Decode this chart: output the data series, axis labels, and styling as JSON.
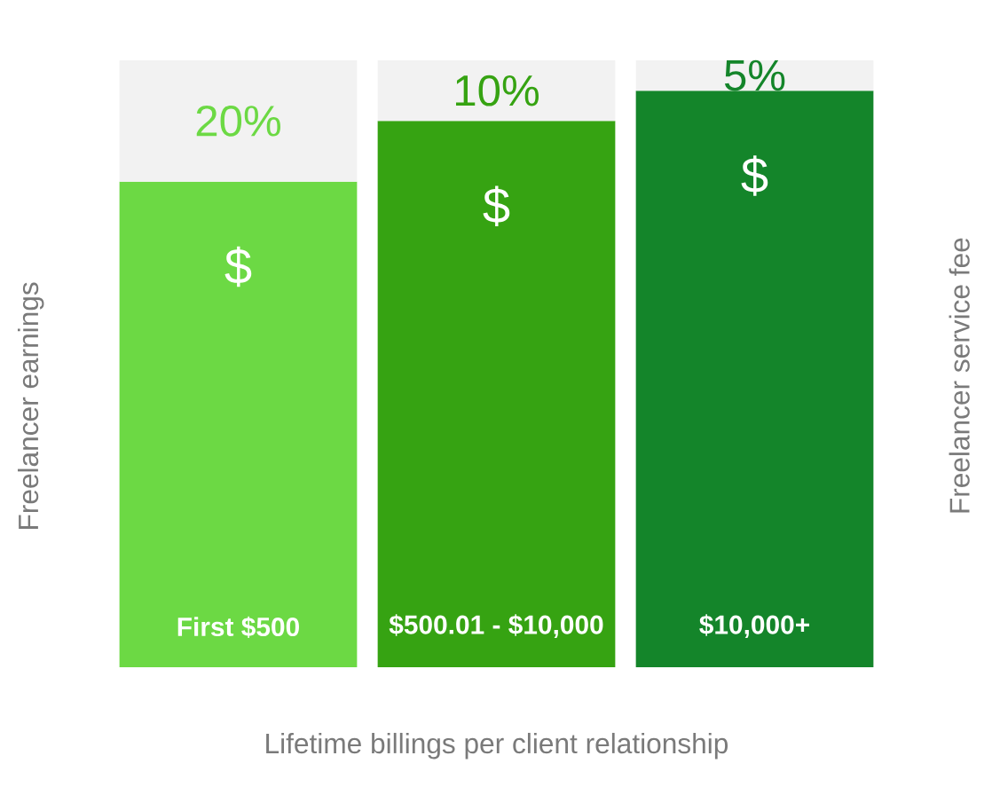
{
  "chart_data": {
    "type": "bar",
    "stacked": true,
    "ylim": [
      0,
      100
    ],
    "tick_labels": false,
    "xlabel": "Lifetime billings per client relationship",
    "ylabel": "Freelancer earnings",
    "y2label": "Freelancer service fee",
    "categories": [
      "First $500",
      "$500.01 - $10,000",
      "$10,000+"
    ],
    "series": [
      {
        "colors": [
          "#6cd944",
          "#36a312",
          "#14852a"
        ],
        "values": [
          80,
          90,
          95
        ],
        "value_labels": [
          "$",
          "$",
          "$"
        ]
      },
      {
        "colors": [
          "#f2f2f2",
          "#f2f2f2",
          "#f2f2f2"
        ],
        "values": [
          20,
          10,
          5
        ],
        "value_labels": [
          "20%",
          "10%",
          "5%"
        ]
      }
    ]
  }
}
